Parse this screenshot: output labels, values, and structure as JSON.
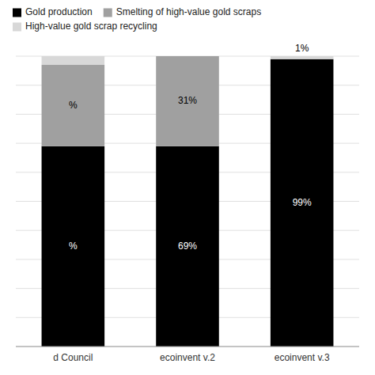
{
  "chart_data": {
    "type": "bar",
    "stacked": true,
    "categories": [
      "d Council",
      "ecoinvent v.2",
      "ecoinvent v.3"
    ],
    "series": [
      {
        "name": "Gold production",
        "color": "#000000",
        "values": [
          69,
          69,
          99
        ],
        "value_labels": [
          "%",
          "69%",
          "99%"
        ]
      },
      {
        "name": "Smelting of high-value gold scraps",
        "color": "#a0a0a0",
        "values": [
          28,
          31,
          0
        ],
        "value_labels": [
          "%",
          "31%",
          null
        ]
      },
      {
        "name": "High-value gold scrap recycling",
        "color": "#d8d8d8",
        "values": [
          3,
          0,
          1
        ],
        "value_labels": [
          null,
          null,
          "1%"
        ]
      }
    ],
    "ylim": [
      0,
      100
    ],
    "yticks": [
      0,
      10,
      20,
      30,
      40,
      50,
      60,
      70,
      80,
      90,
      100
    ],
    "grid": true,
    "legend": "upper left",
    "tick_labels": "x"
  }
}
